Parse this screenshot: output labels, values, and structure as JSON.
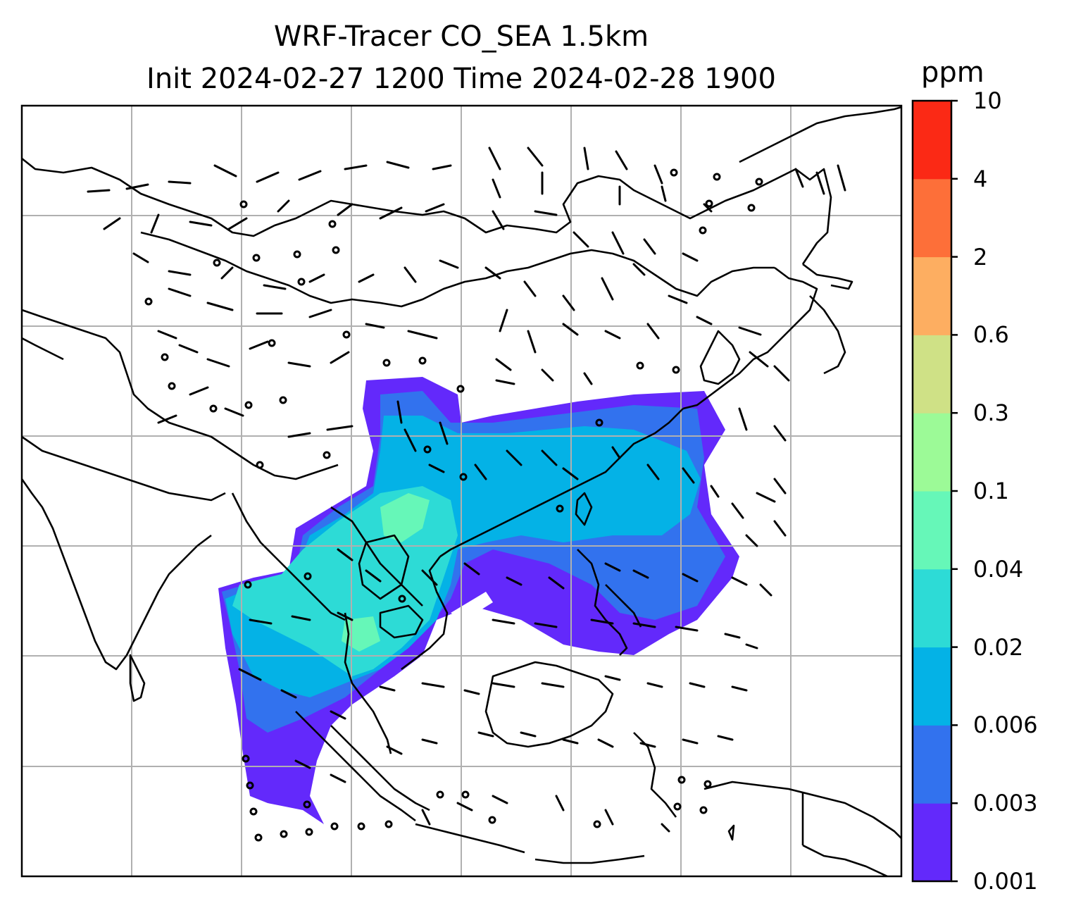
{
  "title": {
    "line1": "WRF-Tracer CO_SEA 1.5km",
    "line2": "Init 2024-02-27 1200 Time 2024-02-28 1900"
  },
  "colorbar": {
    "unit": "ppm",
    "levels": [
      "0.001",
      "0.003",
      "0.006",
      "0.02",
      "0.04",
      "0.1",
      "0.3",
      "0.6",
      "2",
      "4",
      "10"
    ],
    "colors": [
      "#6329fb",
      "#3272ee",
      "#04b2e6",
      "#2ddbd6",
      "#66f7b8",
      "#9cfa97",
      "#cfe186",
      "#fdae61",
      "#fd6f39",
      "#fb2915"
    ]
  },
  "map": {
    "gridlines": true,
    "coastline_color": "#000000",
    "grid_color": "#b0b0b0"
  }
}
